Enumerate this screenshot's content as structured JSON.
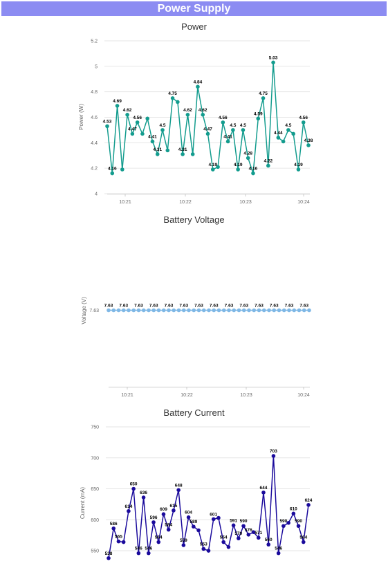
{
  "header": {
    "title": "Power Supply"
  },
  "chart_data": [
    {
      "type": "line",
      "title": "Power",
      "ylabel": "Power (W)",
      "xlabel": "",
      "color": "#139c8e",
      "ylim": [
        4,
        5.2
      ],
      "yticks": [
        4,
        4.2,
        4.4,
        4.6,
        4.8,
        5,
        5.2
      ],
      "ytick_labels": [
        "4",
        "4.2",
        "4.4",
        "4.6",
        "4.8",
        "5",
        "5.2"
      ],
      "xticks": [
        "10:21",
        "10:22",
        "10:23",
        "10:24"
      ],
      "grid": true,
      "values": [
        4.53,
        4.16,
        4.69,
        4.19,
        4.62,
        4.47,
        4.56,
        4.47,
        4.59,
        4.41,
        4.31,
        4.5,
        4.34,
        4.75,
        4.72,
        4.31,
        4.62,
        4.31,
        4.84,
        4.62,
        4.47,
        4.19,
        4.21,
        4.56,
        4.41,
        4.5,
        4.19,
        4.5,
        4.28,
        4.16,
        4.59,
        4.75,
        4.22,
        5.03,
        4.44,
        4.41,
        4.5,
        4.47,
        4.19,
        4.56,
        4.38
      ],
      "data_labels": [
        "4.53",
        "4.16",
        "4.69",
        "",
        "4.62",
        "4.47",
        "4.56",
        "",
        "",
        "4.41",
        "4.31",
        "4.5",
        "",
        "4.75",
        "",
        "4.31",
        "4.62",
        "",
        "4.84",
        "4.62",
        "4.47",
        "4.19",
        "",
        "4.56",
        "4.41",
        "4.5",
        "4.19",
        "4.5",
        "4.28",
        "4.16",
        "4.59",
        "4.75",
        "4.22",
        "5.03",
        "4.44",
        "",
        "4.5",
        "",
        "4.19",
        "4.56",
        "4.38"
      ]
    },
    {
      "type": "line",
      "title": "Battery Voltage",
      "ylabel": "Voltage (V)",
      "xlabel": "",
      "color": "#7fb8e6",
      "ylim": [
        7.0,
        8.26
      ],
      "yticks": [
        7.63
      ],
      "ytick_labels": [
        "7.63"
      ],
      "xticks": [
        "10:21",
        "10:22",
        "10:23",
        "10:24"
      ],
      "grid": false,
      "values": [
        7.63,
        7.63,
        7.63,
        7.63,
        7.63,
        7.63,
        7.63,
        7.63,
        7.63,
        7.63,
        7.63,
        7.63,
        7.63,
        7.63,
        7.63,
        7.63,
        7.63,
        7.63,
        7.63,
        7.63,
        7.63,
        7.63,
        7.63,
        7.63,
        7.63,
        7.63,
        7.63,
        7.63,
        7.63,
        7.63,
        7.63,
        7.63,
        7.63,
        7.63,
        7.63,
        7.63,
        7.63,
        7.63,
        7.63,
        7.63,
        7.63
      ],
      "data_labels": [
        "7.63",
        "",
        "",
        "7.63",
        "",
        "",
        "7.63",
        "",
        "",
        "7.63",
        "",
        "",
        "7.63",
        "",
        "",
        "7.63",
        "",
        "",
        "7.63",
        "",
        "",
        "7.63",
        "",
        "",
        "7.63",
        "",
        "",
        "7.63",
        "",
        "",
        "7.63",
        "",
        "",
        "7.63",
        "",
        "",
        "7.63",
        "",
        "",
        "7.63",
        ""
      ]
    },
    {
      "type": "line",
      "title": "Battery Current",
      "ylabel": "Current (mA)",
      "xlabel": "",
      "color": "#1a0a9c",
      "ylim": [
        540,
        750
      ],
      "yticks": [
        550,
        600,
        650,
        700,
        750
      ],
      "ytick_labels": [
        "550",
        "600",
        "650",
        "700",
        "750"
      ],
      "xticks": [],
      "grid": true,
      "values": [
        538,
        586,
        565,
        564,
        614,
        650,
        546,
        636,
        546,
        596,
        564,
        609,
        584,
        615,
        648,
        559,
        604,
        589,
        583,
        553,
        550,
        601,
        603,
        564,
        556,
        591,
        570,
        590,
        576,
        580,
        571,
        644,
        560,
        703,
        546,
        590,
        595,
        610,
        590,
        564,
        624
      ],
      "data_labels": [
        "538",
        "586",
        "565",
        "",
        "614",
        "650",
        "546",
        "636",
        "546",
        "596",
        "564",
        "609",
        "584",
        "615",
        "648",
        "559",
        "604",
        "589",
        "",
        "553",
        "",
        "601",
        "",
        "564",
        "",
        "591",
        "570",
        "590",
        "576",
        "",
        "571",
        "644",
        "560",
        "703",
        "546",
        "590",
        "",
        "610",
        "590",
        "564",
        "624"
      ]
    }
  ]
}
